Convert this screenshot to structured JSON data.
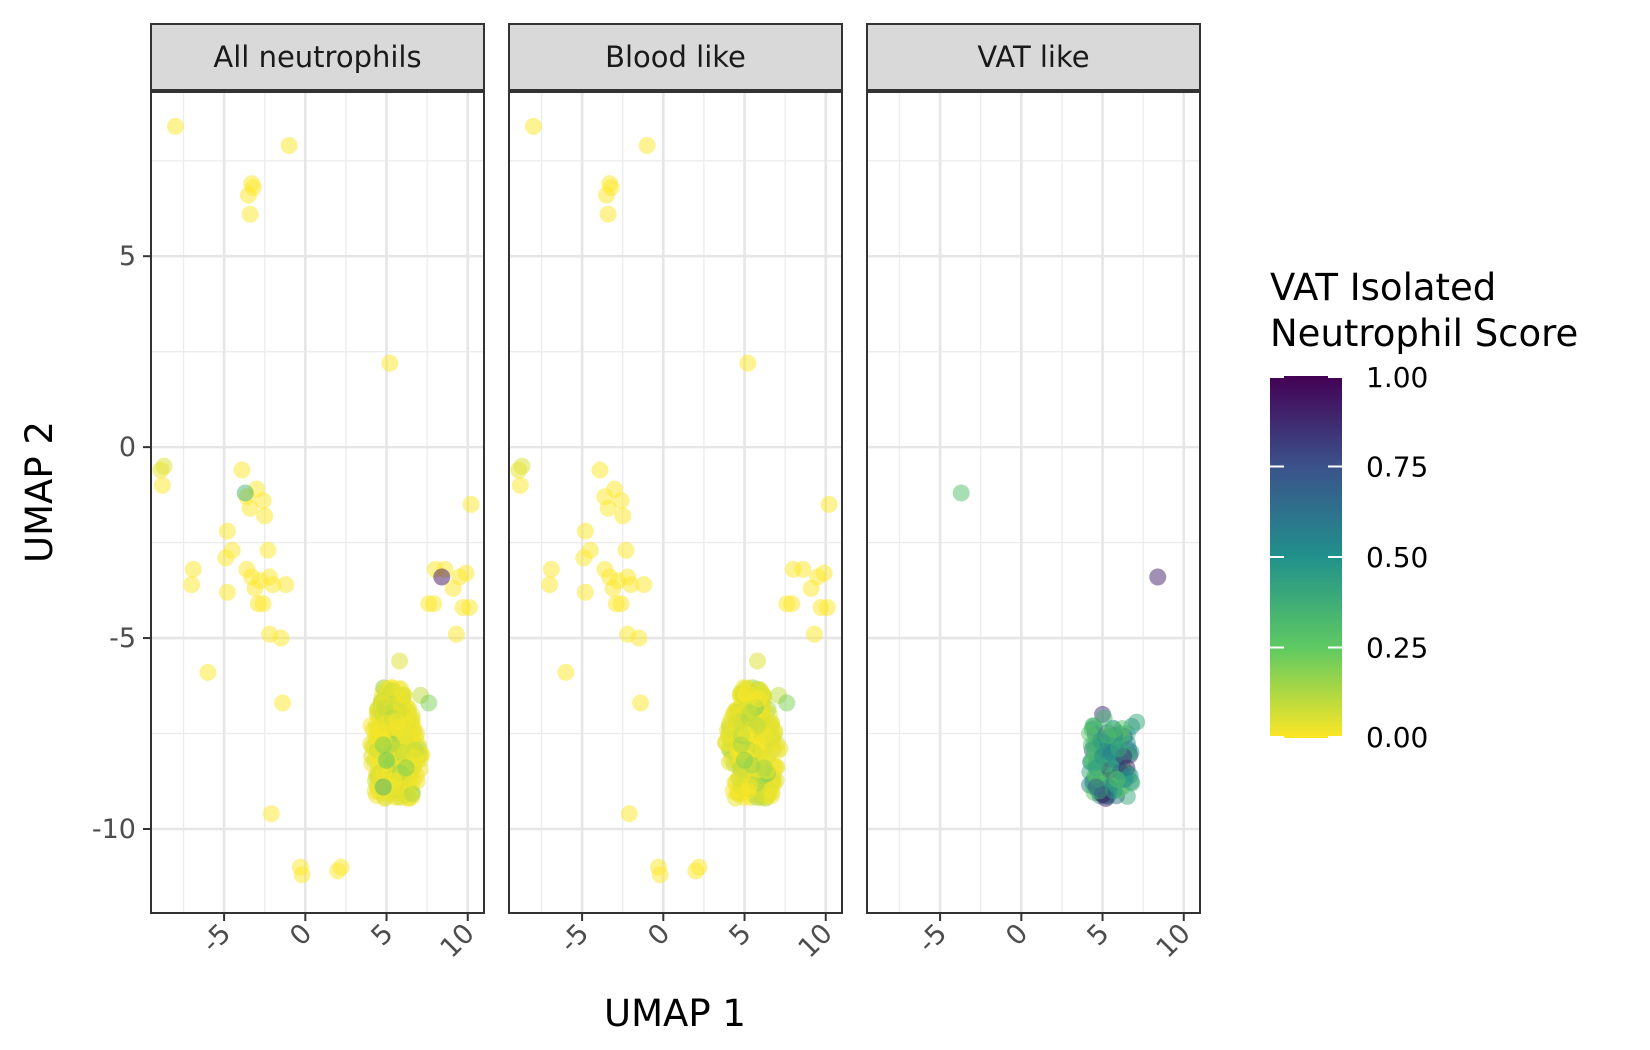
{
  "chart_data": {
    "type": "scatter",
    "xlabel": "UMAP 1",
    "ylabel": "UMAP 2",
    "xlim": [
      -9.5,
      11
    ],
    "ylim": [
      -12.2,
      9.3
    ],
    "x_ticks": [
      -5,
      0,
      5,
      10
    ],
    "y_ticks": [
      5,
      0,
      -5,
      -10
    ],
    "x_tick_labels": [
      "-5",
      "0",
      "5",
      "10"
    ],
    "y_tick_labels": [
      "5",
      "0",
      "-5",
      "-10"
    ],
    "grid": true,
    "legend_position": "right",
    "colorbar": {
      "title_lines": [
        "VAT Isolated",
        "Neutrophil Score"
      ],
      "ticks": [
        1.0,
        0.75,
        0.5,
        0.25,
        0.0
      ],
      "tick_labels": [
        "1.00",
        "0.75",
        "0.50",
        "0.25",
        "0.00"
      ],
      "range": [
        0,
        1
      ],
      "palette": "viridis"
    },
    "panels": [
      {
        "name": "All neutrophils",
        "points": [
          [
            -8.0,
            8.4,
            0.0
          ],
          [
            -1.0,
            7.9,
            0.0
          ],
          [
            -3.5,
            6.6,
            0.0
          ],
          [
            -3.2,
            6.8,
            0.0
          ],
          [
            -3.3,
            6.9,
            0.0
          ],
          [
            -3.4,
            6.1,
            0.0
          ],
          [
            5.2,
            2.2,
            0.0
          ],
          [
            -8.9,
            -0.6,
            0.03
          ],
          [
            -8.7,
            -0.5,
            0.05
          ],
          [
            -8.8,
            -1.0,
            0.0
          ],
          [
            -3.9,
            -0.6,
            0.0
          ],
          [
            -3.6,
            -1.3,
            0.0
          ],
          [
            -3.4,
            -1.6,
            0.0
          ],
          [
            -3.0,
            -1.1,
            0.0
          ],
          [
            -2.6,
            -1.4,
            0.0
          ],
          [
            -2.5,
            -1.8,
            0.0
          ],
          [
            -3.7,
            -1.2,
            0.35
          ],
          [
            -4.8,
            -2.2,
            0.0
          ],
          [
            -4.5,
            -2.7,
            0.0
          ],
          [
            -4.9,
            -2.9,
            0.0
          ],
          [
            -3.6,
            -3.2,
            0.0
          ],
          [
            -3.3,
            -3.4,
            0.0
          ],
          [
            -3.1,
            -3.7,
            0.0
          ],
          [
            -2.8,
            -3.5,
            0.0
          ],
          [
            -2.3,
            -2.7,
            0.0
          ],
          [
            -2.2,
            -3.4,
            0.0
          ],
          [
            -2.0,
            -3.6,
            0.0
          ],
          [
            -1.2,
            -3.6,
            0.0
          ],
          [
            -2.6,
            -4.1,
            0.0
          ],
          [
            -2.9,
            -4.1,
            0.0
          ],
          [
            -2.2,
            -4.9,
            0.0
          ],
          [
            -1.5,
            -5.0,
            0.0
          ],
          [
            -6.9,
            -3.2,
            0.0
          ],
          [
            -7.0,
            -3.6,
            0.0
          ],
          [
            -4.8,
            -3.8,
            0.0
          ],
          [
            -6.0,
            -5.9,
            0.0
          ],
          [
            -1.4,
            -6.7,
            0.0
          ],
          [
            -2.1,
            -9.6,
            0.0
          ],
          [
            -0.3,
            -11.0,
            0.0
          ],
          [
            -0.2,
            -11.2,
            0.0
          ],
          [
            2.2,
            -11.0,
            0.0
          ],
          [
            2.0,
            -11.1,
            0.0
          ],
          [
            8.0,
            -3.2,
            0.0
          ],
          [
            8.6,
            -3.2,
            0.0
          ],
          [
            9.5,
            -3.4,
            0.0
          ],
          [
            9.1,
            -3.7,
            0.0
          ],
          [
            9.9,
            -3.3,
            0.0
          ],
          [
            7.6,
            -4.1,
            0.0
          ],
          [
            7.9,
            -4.1,
            0.0
          ],
          [
            9.7,
            -4.2,
            0.0
          ],
          [
            10.1,
            -4.2,
            0.0
          ],
          [
            9.3,
            -4.9,
            0.0
          ],
          [
            10.2,
            -1.5,
            0.0
          ],
          [
            8.4,
            -3.4,
            0.95
          ],
          [
            5.8,
            -5.6,
            0.05
          ],
          [
            7.1,
            -6.5,
            0.1
          ],
          [
            7.6,
            -6.7,
            0.2
          ],
          [
            4.8,
            -7.8,
            0.2
          ],
          [
            5.0,
            -8.2,
            0.25
          ],
          [
            6.2,
            -8.4,
            0.2
          ],
          [
            4.8,
            -8.9,
            0.35
          ]
        ]
      },
      {
        "name": "Blood like",
        "points": [
          [
            -8.0,
            8.4,
            0.0
          ],
          [
            -1.0,
            7.9,
            0.0
          ],
          [
            -3.5,
            6.6,
            0.0
          ],
          [
            -3.2,
            6.8,
            0.0
          ],
          [
            -3.3,
            6.9,
            0.0
          ],
          [
            -3.4,
            6.1,
            0.0
          ],
          [
            5.2,
            2.2,
            0.0
          ],
          [
            -8.9,
            -0.6,
            0.03
          ],
          [
            -8.7,
            -0.5,
            0.05
          ],
          [
            -8.8,
            -1.0,
            0.0
          ],
          [
            -3.9,
            -0.6,
            0.0
          ],
          [
            -3.6,
            -1.3,
            0.0
          ],
          [
            -3.4,
            -1.6,
            0.0
          ],
          [
            -3.0,
            -1.1,
            0.0
          ],
          [
            -2.6,
            -1.4,
            0.0
          ],
          [
            -2.5,
            -1.8,
            0.0
          ],
          [
            -4.8,
            -2.2,
            0.0
          ],
          [
            -4.5,
            -2.7,
            0.0
          ],
          [
            -4.9,
            -2.9,
            0.0
          ],
          [
            -3.6,
            -3.2,
            0.0
          ],
          [
            -3.3,
            -3.4,
            0.0
          ],
          [
            -3.1,
            -3.7,
            0.0
          ],
          [
            -2.8,
            -3.5,
            0.0
          ],
          [
            -2.3,
            -2.7,
            0.0
          ],
          [
            -2.2,
            -3.4,
            0.0
          ],
          [
            -2.0,
            -3.6,
            0.0
          ],
          [
            -1.2,
            -3.6,
            0.0
          ],
          [
            -2.6,
            -4.1,
            0.0
          ],
          [
            -2.9,
            -4.1,
            0.0
          ],
          [
            -2.2,
            -4.9,
            0.0
          ],
          [
            -1.5,
            -5.0,
            0.0
          ],
          [
            -6.9,
            -3.2,
            0.0
          ],
          [
            -7.0,
            -3.6,
            0.0
          ],
          [
            -4.8,
            -3.8,
            0.0
          ],
          [
            -6.0,
            -5.9,
            0.0
          ],
          [
            -1.4,
            -6.7,
            0.0
          ],
          [
            -2.1,
            -9.6,
            0.0
          ],
          [
            -0.3,
            -11.0,
            0.0
          ],
          [
            -0.2,
            -11.2,
            0.0
          ],
          [
            2.2,
            -11.0,
            0.0
          ],
          [
            2.0,
            -11.1,
            0.0
          ],
          [
            8.0,
            -3.2,
            0.0
          ],
          [
            8.6,
            -3.2,
            0.0
          ],
          [
            9.5,
            -3.4,
            0.0
          ],
          [
            9.1,
            -3.7,
            0.0
          ],
          [
            9.9,
            -3.3,
            0.0
          ],
          [
            7.6,
            -4.1,
            0.0
          ],
          [
            7.9,
            -4.1,
            0.0
          ],
          [
            9.7,
            -4.2,
            0.0
          ],
          [
            10.1,
            -4.2,
            0.0
          ],
          [
            9.3,
            -4.9,
            0.0
          ],
          [
            10.2,
            -1.5,
            0.0
          ],
          [
            5.8,
            -5.6,
            0.05
          ],
          [
            7.1,
            -6.5,
            0.1
          ],
          [
            7.6,
            -6.7,
            0.2
          ],
          [
            4.8,
            -7.8,
            0.15
          ],
          [
            5.0,
            -8.2,
            0.2
          ],
          [
            6.2,
            -8.4,
            0.15
          ]
        ]
      },
      {
        "name": "VAT like",
        "points": [
          [
            -3.7,
            -1.2,
            0.3
          ],
          [
            8.4,
            -3.4,
            0.9
          ],
          [
            5.0,
            -7.0,
            0.85
          ],
          [
            5.1,
            -7.1,
            0.35
          ],
          [
            7.1,
            -7.2,
            0.4
          ],
          [
            5.7,
            -7.4,
            0.3
          ],
          [
            4.2,
            -7.5,
            0.25
          ],
          [
            4.3,
            -7.8,
            0.3
          ],
          [
            4.5,
            -8.0,
            0.35
          ],
          [
            4.4,
            -8.2,
            0.3
          ],
          [
            4.6,
            -8.4,
            0.45
          ],
          [
            5.0,
            -8.1,
            0.5
          ],
          [
            5.3,
            -8.3,
            0.4
          ],
          [
            5.6,
            -8.6,
            0.35
          ],
          [
            5.8,
            -8.2,
            0.45
          ],
          [
            6.1,
            -8.5,
            0.6
          ],
          [
            6.3,
            -8.1,
            0.85
          ],
          [
            6.5,
            -8.4,
            0.9
          ],
          [
            6.7,
            -8.6,
            0.5
          ],
          [
            6.2,
            -8.9,
            0.3
          ],
          [
            5.4,
            -8.9,
            0.6
          ],
          [
            5.0,
            -9.1,
            0.95
          ],
          [
            5.2,
            -9.2,
            0.9
          ],
          [
            4.8,
            -9.0,
            0.4
          ],
          [
            4.7,
            -8.7,
            0.3
          ],
          [
            5.5,
            -8.0,
            0.55
          ],
          [
            4.9,
            -7.7,
            0.45
          ],
          [
            4.4,
            -7.3,
            0.3
          ],
          [
            6.0,
            -7.9,
            0.4
          ],
          [
            6.8,
            -8.8,
            0.35
          ],
          [
            4.6,
            -8.9,
            0.7
          ],
          [
            5.7,
            -9.0,
            0.45
          ],
          [
            6.4,
            -8.7,
            0.5
          ],
          [
            5.9,
            -8.7,
            0.3
          ]
        ]
      }
    ]
  }
}
